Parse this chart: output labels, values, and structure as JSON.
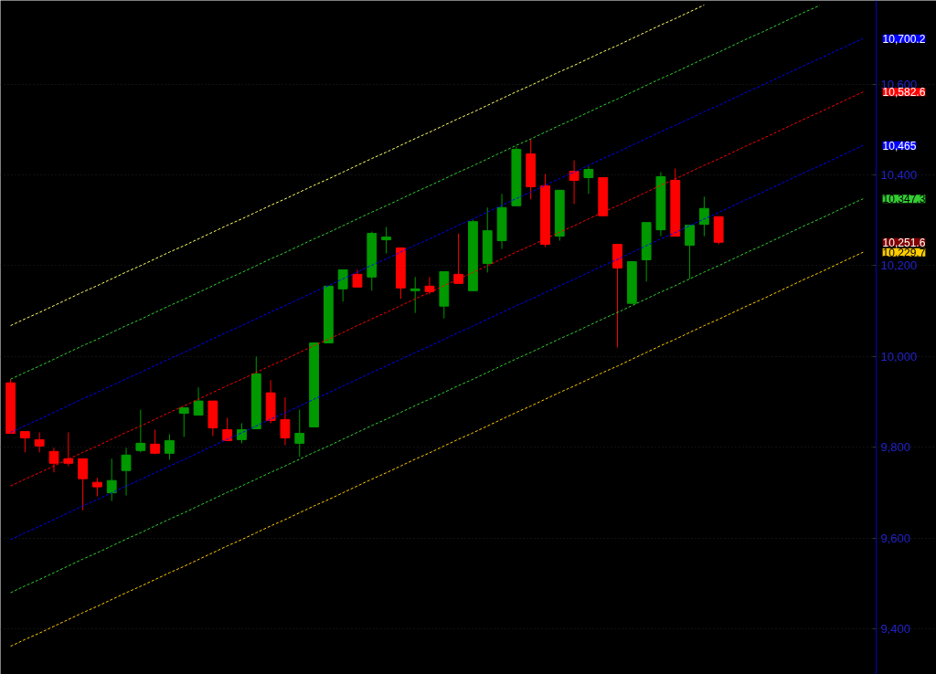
{
  "chart_data": {
    "type": "candlestick",
    "categories": [
      null,
      null,
      null,
      null,
      null,
      null,
      null,
      null,
      null,
      null,
      null,
      null,
      null,
      null,
      null,
      null,
      null,
      null,
      null,
      null,
      null,
      null,
      null,
      null,
      null,
      null,
      null,
      null,
      null,
      null,
      null,
      null,
      null,
      null,
      null,
      null,
      null,
      null,
      null,
      null,
      null,
      null,
      null,
      null,
      null,
      null,
      null,
      null,
      null,
      null,
      null,
      null,
      null,
      null,
      null,
      null,
      null,
      null,
      null,
      null
    ],
    "ohlc": [
      [
        9942,
        9950,
        9831,
        9831
      ],
      [
        9835,
        9835,
        9789,
        9821
      ],
      [
        9817,
        9833,
        9789,
        9803
      ],
      [
        9791,
        9799,
        9745,
        9765
      ],
      [
        9775,
        9833,
        9759,
        9765
      ],
      [
        9775,
        9775,
        9662,
        9731
      ],
      [
        9723,
        9733,
        9692,
        9713
      ],
      [
        9700,
        9775,
        9682,
        9727
      ],
      [
        9749,
        9799,
        9694,
        9783
      ],
      [
        9793,
        9883,
        9789,
        9809
      ],
      [
        9807,
        9839,
        9785,
        9787
      ],
      [
        9787,
        9829,
        9773,
        9815
      ],
      [
        9875,
        9887,
        9823,
        9887
      ],
      [
        9871,
        9932,
        9871,
        9902
      ],
      [
        9902,
        9902,
        9825,
        9843
      ],
      [
        9839,
        9865,
        9815,
        9815
      ],
      [
        9817,
        9853,
        9809,
        9839
      ],
      [
        9841,
        10000,
        9841,
        9962
      ],
      [
        9920,
        9948,
        9853,
        9859
      ],
      [
        9861,
        9910,
        9805,
        9821
      ],
      [
        9809,
        9883,
        9779,
        9831
      ],
      [
        9845,
        10030,
        9845,
        10030
      ],
      [
        10030,
        10155,
        10030,
        10155
      ],
      [
        10149,
        10191,
        10121,
        10191
      ],
      [
        10181,
        10191,
        10153,
        10153
      ],
      [
        10175,
        10275,
        10145,
        10271
      ],
      [
        10257,
        10285,
        10227,
        10263
      ],
      [
        10239,
        10239,
        10127,
        10151
      ],
      [
        10145,
        10175,
        10096,
        10149
      ],
      [
        10155,
        10175,
        10137,
        10143
      ],
      [
        10111,
        10187,
        10084,
        10187
      ],
      [
        10181,
        10271,
        10161,
        10161
      ],
      [
        10145,
        10301,
        10145,
        10297
      ],
      [
        10205,
        10328,
        10185,
        10277
      ],
      [
        10255,
        10358,
        10237,
        10328
      ],
      [
        10332,
        10462,
        10332,
        10456
      ],
      [
        10446,
        10478,
        10346,
        10374
      ],
      [
        10376,
        10402,
        10241,
        10247
      ],
      [
        10265,
        10366,
        10255,
        10366
      ],
      [
        10408,
        10432,
        10336,
        10388
      ],
      [
        10394,
        10418,
        10358,
        10412
      ],
      [
        10394,
        10394,
        10310,
        10310
      ],
      [
        10247,
        10247,
        10020,
        10195
      ],
      [
        10117,
        10209,
        10117,
        10209
      ],
      [
        10213,
        10295,
        10165,
        10295
      ],
      [
        10279,
        10406,
        10265,
        10396
      ],
      [
        10388,
        10414,
        10265,
        10265
      ],
      [
        10245,
        10289,
        10171,
        10289
      ],
      [
        10291,
        10352,
        10265,
        10326
      ],
      [
        10308,
        10308,
        10247,
        10251.6
      ],
      null,
      null,
      null,
      null,
      null,
      null,
      null,
      null,
      null,
      null
    ],
    "colors": [
      "#ff0000",
      "#ff0000",
      "#ff0000",
      "#ff0000",
      "#ff0000",
      "#ff0000",
      "#ff0000",
      "#009900",
      "#009900",
      "#009900",
      "#ff0000",
      "#009900",
      "#009900",
      "#009900",
      "#ff0000",
      "#ff0000",
      "#009900",
      "#009900",
      "#ff0000",
      "#ff0000",
      "#009900",
      "#009900",
      "#009900",
      "#009900",
      "#ff0000",
      "#009900",
      "#009900",
      "#ff0000",
      "#009900",
      "#ff0000",
      "#009900",
      "#ff0000",
      "#009900",
      "#009900",
      "#009900",
      "#009900",
      "#ff0000",
      "#ff0000",
      "#009900",
      "#ff0000",
      "#009900",
      "#ff0000",
      "#ff0000",
      "#009900",
      "#009900",
      "#009900",
      "#ff0000",
      "#009900",
      "#009900",
      "#ff0000",
      null,
      null,
      null,
      null,
      null,
      null,
      null,
      null,
      null,
      null
    ],
    "series": [
      {
        "type": "line",
        "color": "#ffff66",
        "line_style": "dashed",
        "values": [
          10068,
          10083,
          10097,
          10112,
          10127,
          10142,
          10156,
          10171,
          10186,
          10200,
          10215,
          10230,
          10244,
          10259,
          10274,
          10289,
          10303,
          10318,
          10333,
          10347,
          10362,
          10377,
          10391,
          10406,
          10421,
          10436,
          10450,
          10465,
          10480,
          10494,
          10509,
          10524,
          10538,
          10553,
          10568,
          10583,
          10597,
          10612,
          10627,
          10641,
          10656,
          10671,
          10685,
          10700,
          10715,
          10730,
          10744,
          10759,
          10774,
          null,
          null,
          null,
          null,
          null,
          null,
          null,
          null,
          null,
          null,
          null
        ]
      },
      {
        "type": "line",
        "color": "#33cc33",
        "line_style": "dashed",
        "values": [
          9950,
          9965,
          9979,
          9994,
          10009,
          10024,
          10038,
          10053,
          10068,
          10082,
          10097,
          10112,
          10126,
          10141,
          10156,
          10171,
          10185,
          10200,
          10215,
          10229,
          10244,
          10259,
          10273,
          10288,
          10303,
          10318,
          10332,
          10347,
          10362,
          10376,
          10391,
          10406,
          10420,
          10435,
          10450,
          10465,
          10479,
          10494,
          10509,
          10523,
          10538,
          10553,
          10567,
          10582,
          10597,
          10612,
          10626,
          10641,
          10656,
          10670,
          10685,
          10700,
          10714,
          10729,
          10744,
          10759,
          10773,
          null,
          null,
          null
        ]
      },
      {
        "type": "line",
        "color": "#0000ff",
        "line_style": "dashed",
        "values": [
          9833,
          9848,
          9862,
          9877,
          9892,
          9907,
          9921,
          9936,
          9951,
          9965,
          9980,
          9995,
          10009,
          10024,
          10039,
          10054,
          10068,
          10083,
          10098,
          10112,
          10127,
          10142,
          10156,
          10171,
          10186,
          10201,
          10215,
          10230,
          10245,
          10259,
          10274,
          10289,
          10303,
          10318,
          10333,
          10348,
          10362,
          10377,
          10392,
          10406,
          10421,
          10436,
          10450,
          10465,
          10480,
          10495,
          10509,
          10524,
          10539,
          10553,
          10568,
          10583,
          10597,
          10612,
          10627,
          10642,
          10656,
          10671,
          10686,
          10700.2
        ],
        "value_labels": [
          null,
          null,
          null,
          null,
          null,
          null,
          null,
          null,
          null,
          null,
          null,
          null,
          null,
          null,
          null,
          null,
          null,
          null,
          null,
          null,
          null,
          null,
          null,
          null,
          null,
          null,
          null,
          null,
          null,
          null,
          null,
          null,
          null,
          null,
          null,
          null,
          null,
          null,
          null,
          null,
          null,
          null,
          null,
          null,
          null,
          null,
          null,
          null,
          null,
          null,
          null,
          null,
          null,
          null,
          null,
          null,
          null,
          null,
          null,
          "10,700.2"
        ]
      },
      {
        "type": "line",
        "color": "#ff0000",
        "line_style": "dashed",
        "values": [
          9715,
          9730,
          9744,
          9759,
          9774,
          9789,
          9803,
          9818,
          9833,
          9847,
          9862,
          9877,
          9891,
          9906,
          9921,
          9936,
          9950,
          9965,
          9980,
          9994,
          10009,
          10024,
          10038,
          10053,
          10068,
          10083,
          10097,
          10112,
          10127,
          10141,
          10156,
          10171,
          10185,
          10200,
          10215,
          10230,
          10244,
          10259,
          10274,
          10288,
          10303,
          10318,
          10332,
          10347,
          10362,
          10377,
          10391,
          10406,
          10421,
          10435,
          10450,
          10465,
          10479,
          10494,
          10509,
          10524,
          10538,
          10553,
          10568,
          10582.6
        ],
        "value_labels": [
          null,
          null,
          null,
          null,
          null,
          null,
          null,
          null,
          null,
          null,
          null,
          null,
          null,
          null,
          null,
          null,
          null,
          null,
          null,
          null,
          null,
          null,
          null,
          null,
          null,
          null,
          null,
          null,
          null,
          null,
          null,
          null,
          null,
          null,
          null,
          null,
          null,
          null,
          null,
          null,
          null,
          null,
          null,
          null,
          null,
          null,
          null,
          null,
          null,
          null,
          null,
          null,
          null,
          null,
          null,
          null,
          null,
          null,
          null,
          "10,582.6"
        ]
      },
      {
        "type": "line",
        "color": "#0000ff",
        "line_style": "dashed",
        "values": [
          9597,
          9612,
          9626,
          9641,
          9656,
          9671,
          9685,
          9700,
          9715,
          9729,
          9744,
          9759,
          9773,
          9788,
          9803,
          9818,
          9832,
          9847,
          9862,
          9876,
          9891,
          9906,
          9920,
          9935,
          9950,
          9965,
          9979,
          9994,
          10009,
          10023,
          10038,
          10053,
          10067,
          10082,
          10097,
          10112,
          10126,
          10141,
          10156,
          10170,
          10185,
          10200,
          10214,
          10229,
          10244,
          10259,
          10273,
          10288,
          10303,
          10317,
          10332,
          10347,
          10361,
          10376,
          10391,
          10406,
          10420,
          10435,
          10450,
          10465
        ],
        "value_labels": [
          null,
          null,
          null,
          null,
          null,
          null,
          null,
          null,
          null,
          null,
          null,
          null,
          null,
          null,
          null,
          null,
          null,
          null,
          null,
          null,
          null,
          null,
          null,
          null,
          null,
          null,
          null,
          null,
          null,
          null,
          null,
          null,
          null,
          null,
          null,
          null,
          null,
          null,
          null,
          null,
          null,
          null,
          null,
          null,
          null,
          null,
          null,
          null,
          null,
          null,
          null,
          null,
          null,
          null,
          null,
          null,
          null,
          null,
          null,
          "10,465"
        ]
      },
      {
        "type": "line",
        "color": "#33cc33",
        "line_style": "dashed",
        "values": [
          9480,
          9495,
          9509,
          9524,
          9539,
          9554,
          9568,
          9583,
          9598,
          9612,
          9627,
          9642,
          9656,
          9671,
          9686,
          9701,
          9715,
          9730,
          9745,
          9759,
          9774,
          9789,
          9803,
          9818,
          9833,
          9848,
          9862,
          9877,
          9892,
          9906,
          9921,
          9936,
          9950,
          9965,
          9980,
          9995,
          10009,
          10024,
          10039,
          10053,
          10068,
          10083,
          10097,
          10112,
          10127,
          10142,
          10156,
          10171,
          10186,
          10200,
          10215,
          10230,
          10244,
          10259,
          10274,
          10289,
          10303,
          10318,
          10333,
          10347.3
        ],
        "value_labels": [
          null,
          null,
          null,
          null,
          null,
          null,
          null,
          null,
          null,
          null,
          null,
          null,
          null,
          null,
          null,
          null,
          null,
          null,
          null,
          null,
          null,
          null,
          null,
          null,
          null,
          null,
          null,
          null,
          null,
          null,
          null,
          null,
          null,
          null,
          null,
          null,
          null,
          null,
          null,
          null,
          null,
          null,
          null,
          null,
          null,
          null,
          null,
          null,
          null,
          null,
          null,
          null,
          null,
          null,
          null,
          null,
          null,
          null,
          null,
          "10,347.3"
        ]
      },
      {
        "type": "line",
        "color": "#ffcc00",
        "line_style": "dashed",
        "values": [
          9362,
          9377,
          9391,
          9406,
          9421,
          9436,
          9450,
          9465,
          9480,
          9494,
          9509,
          9524,
          9538,
          9553,
          9568,
          9583,
          9597,
          9612,
          9627,
          9641,
          9656,
          9671,
          9685,
          9700,
          9715,
          9730,
          9744,
          9759,
          9774,
          9788,
          9803,
          9818,
          9832,
          9847,
          9862,
          9877,
          9891,
          9906,
          9921,
          9935,
          9950,
          9965,
          9979,
          9994,
          10009,
          10024,
          10038,
          10053,
          10068,
          10082,
          10097,
          10112,
          10126,
          10141,
          10156,
          10171,
          10185,
          10200,
          10215,
          10229.7
        ],
        "value_labels": [
          null,
          null,
          null,
          null,
          null,
          null,
          null,
          null,
          null,
          null,
          null,
          null,
          null,
          null,
          null,
          null,
          null,
          null,
          null,
          null,
          null,
          null,
          null,
          null,
          null,
          null,
          null,
          null,
          null,
          null,
          null,
          null,
          null,
          null,
          null,
          null,
          null,
          null,
          null,
          null,
          null,
          null,
          null,
          null,
          null,
          null,
          null,
          null,
          null,
          null,
          null,
          null,
          null,
          null,
          null,
          null,
          null,
          null,
          null,
          "10,229.7"
        ]
      }
    ],
    "annotations": [
      "10,251.6"
    ],
    "ylim": [
      9300,
      10784
    ],
    "yticks": [
      {
        "value": 9400,
        "label": "9,400"
      },
      {
        "value": 9600,
        "label": "9,600"
      },
      {
        "value": 9800,
        "label": "9,800"
      },
      {
        "value": 10000,
        "label": "10,000"
      },
      {
        "value": 10200,
        "label": "10,200"
      },
      {
        "value": 10400,
        "label": "10,400"
      },
      {
        "value": 10600,
        "label": "10,600"
      }
    ],
    "tick_labels": "y",
    "grid": "y"
  }
}
